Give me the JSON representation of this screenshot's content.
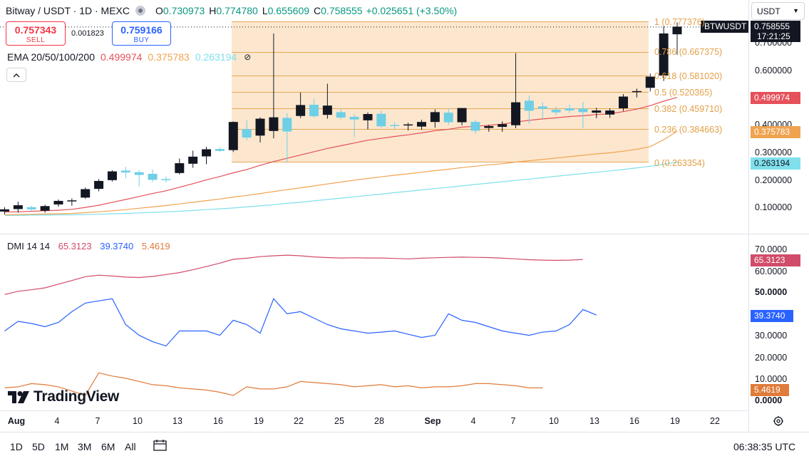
{
  "header": {
    "title": "Bitway / USDT · 1D · MEXC",
    "o_label": "O",
    "o_value": "0.730973",
    "h_label": "H",
    "h_value": "0.774780",
    "l_label": "L",
    "l_value": "0.655609",
    "c_label": "C",
    "c_value": "0.758555",
    "change": "+0.025651 (+3.50%)",
    "up_color": "#089981"
  },
  "trade": {
    "sell_price": "0.757343",
    "sell_label": "SELL",
    "spread": "0.001823",
    "buy_price": "0.759166",
    "buy_label": "BUY"
  },
  "ema": {
    "name": "EMA 20/50/100/200",
    "v20": "0.499974",
    "v50": "0.375783",
    "v100": "0.263194",
    "hide_icon": "⊘",
    "colors": {
      "ema20": "#e5505a",
      "ema50": "#f0a350",
      "ema100": "#7fe0ec"
    }
  },
  "collapse_icon": "chevron-up",
  "dmi": {
    "name": "DMI 14 14",
    "adx": "65.3123",
    "plus_di": "39.3740",
    "minus_di": "5.4619",
    "colors": {
      "adx": "#d14b6a",
      "plus_di": "#2962ff",
      "minus_di": "#e07b39"
    }
  },
  "logo_text": "TradingView",
  "currency": {
    "selected": "USDT"
  },
  "price_axis": {
    "ticker": "BTWUSDT",
    "last_price": "0.758555",
    "countdown": "17:21:25",
    "ticks": [
      "0.700000",
      "0.600000",
      "0.400000",
      "0.300000",
      "0.200000",
      "0.100000"
    ],
    "ema20_tag": "0.499974",
    "ema50_tag": "0.375783",
    "ema100_tag": "0.263194"
  },
  "dmi_axis": {
    "ticks": [
      "70.0000",
      "60.0000",
      "50.0000",
      "30.0000",
      "20.0000",
      "10.0000",
      "0.0000"
    ],
    "adx_tag": "65.3123",
    "plus_tag": "39.3740",
    "minus_tag": "5.4619"
  },
  "fib": {
    "levels": [
      {
        "label": "1 (0.777376)",
        "value": 0.777376
      },
      {
        "label": "0.786 (0.667375)",
        "value": 0.667375
      },
      {
        "label": "0.618 (0.581020)",
        "value": 0.58102
      },
      {
        "label": "0.5 (0.520365)",
        "value": 0.520365
      },
      {
        "label": "0.382 (0.459710)",
        "value": 0.45971
      },
      {
        "label": "0.236 (0.384663)",
        "value": 0.384663
      },
      {
        "label": "0 (0.263354)",
        "value": 0.263354
      }
    ],
    "fill_color": "#fbe3c6",
    "line_color": "#e3a048"
  },
  "x_axis": {
    "labels": [
      "Aug",
      "4",
      "7",
      "10",
      "13",
      "16",
      "19",
      "22",
      "25",
      "28",
      "Sep",
      "4",
      "7",
      "10",
      "13",
      "16",
      "19",
      "22"
    ]
  },
  "bottom": {
    "timeframes": [
      "1D",
      "5D",
      "1M",
      "3M",
      "6M",
      "All"
    ],
    "utc_time": "06:38:35 UTC"
  },
  "chart_data": {
    "type": "candlestick",
    "symbol": "BTWUSDT",
    "interval": "1D",
    "x_start": "Jul 31",
    "candles": [
      {
        "o": 0.082,
        "h": 0.098,
        "l": 0.072,
        "c": 0.09
      },
      {
        "o": 0.091,
        "h": 0.118,
        "l": 0.078,
        "c": 0.105
      },
      {
        "o": 0.098,
        "h": 0.103,
        "l": 0.083,
        "c": 0.09
      },
      {
        "o": 0.085,
        "h": 0.107,
        "l": 0.078,
        "c": 0.102
      },
      {
        "o": 0.108,
        "h": 0.126,
        "l": 0.1,
        "c": 0.121
      },
      {
        "o": 0.121,
        "h": 0.13,
        "l": 0.103,
        "c": 0.123
      },
      {
        "o": 0.133,
        "h": 0.17,
        "l": 0.129,
        "c": 0.164
      },
      {
        "o": 0.165,
        "h": 0.201,
        "l": 0.156,
        "c": 0.194
      },
      {
        "o": 0.197,
        "h": 0.233,
        "l": 0.192,
        "c": 0.229
      },
      {
        "o": 0.232,
        "h": 0.246,
        "l": 0.203,
        "c": 0.225
      },
      {
        "o": 0.226,
        "h": 0.233,
        "l": 0.174,
        "c": 0.216
      },
      {
        "o": 0.22,
        "h": 0.236,
        "l": 0.19,
        "c": 0.198
      },
      {
        "o": 0.201,
        "h": 0.21,
        "l": 0.188,
        "c": 0.197
      },
      {
        "o": 0.223,
        "h": 0.276,
        "l": 0.218,
        "c": 0.259
      },
      {
        "o": 0.257,
        "h": 0.305,
        "l": 0.242,
        "c": 0.283
      },
      {
        "o": 0.284,
        "h": 0.319,
        "l": 0.255,
        "c": 0.31
      },
      {
        "o": 0.311,
        "h": 0.316,
        "l": 0.3,
        "c": 0.304
      },
      {
        "o": 0.307,
        "h": 0.412,
        "l": 0.3,
        "c": 0.41
      },
      {
        "o": 0.384,
        "h": 0.416,
        "l": 0.343,
        "c": 0.353
      },
      {
        "o": 0.36,
        "h": 0.427,
        "l": 0.335,
        "c": 0.422
      },
      {
        "o": 0.377,
        "h": 0.734,
        "l": 0.35,
        "c": 0.427
      },
      {
        "o": 0.425,
        "h": 0.442,
        "l": 0.263,
        "c": 0.375
      },
      {
        "o": 0.432,
        "h": 0.518,
        "l": 0.424,
        "c": 0.472
      },
      {
        "o": 0.473,
        "h": 0.495,
        "l": 0.425,
        "c": 0.431
      },
      {
        "o": 0.436,
        "h": 0.55,
        "l": 0.422,
        "c": 0.47
      },
      {
        "o": 0.446,
        "h": 0.459,
        "l": 0.42,
        "c": 0.426
      },
      {
        "o": 0.429,
        "h": 0.439,
        "l": 0.355,
        "c": 0.419
      },
      {
        "o": 0.416,
        "h": 0.445,
        "l": 0.383,
        "c": 0.439
      },
      {
        "o": 0.44,
        "h": 0.451,
        "l": 0.389,
        "c": 0.394
      },
      {
        "o": 0.399,
        "h": 0.409,
        "l": 0.382,
        "c": 0.398
      },
      {
        "o": 0.399,
        "h": 0.407,
        "l": 0.379,
        "c": 0.401
      },
      {
        "o": 0.393,
        "h": 0.418,
        "l": 0.381,
        "c": 0.41
      },
      {
        "o": 0.41,
        "h": 0.456,
        "l": 0.389,
        "c": 0.446
      },
      {
        "o": 0.444,
        "h": 0.46,
        "l": 0.399,
        "c": 0.409
      },
      {
        "o": 0.409,
        "h": 0.46,
        "l": 0.398,
        "c": 0.461
      },
      {
        "o": 0.41,
        "h": 0.417,
        "l": 0.367,
        "c": 0.378
      },
      {
        "o": 0.388,
        "h": 0.4,
        "l": 0.374,
        "c": 0.395
      },
      {
        "o": 0.392,
        "h": 0.412,
        "l": 0.374,
        "c": 0.402
      },
      {
        "o": 0.398,
        "h": 0.662,
        "l": 0.387,
        "c": 0.482
      },
      {
        "o": 0.488,
        "h": 0.507,
        "l": 0.403,
        "c": 0.451
      },
      {
        "o": 0.467,
        "h": 0.483,
        "l": 0.422,
        "c": 0.458
      },
      {
        "o": 0.455,
        "h": 0.467,
        "l": 0.434,
        "c": 0.445
      },
      {
        "o": 0.46,
        "h": 0.474,
        "l": 0.443,
        "c": 0.452
      },
      {
        "o": 0.459,
        "h": 0.483,
        "l": 0.388,
        "c": 0.446
      },
      {
        "o": 0.444,
        "h": 0.462,
        "l": 0.424,
        "c": 0.452
      },
      {
        "o": 0.437,
        "h": 0.46,
        "l": 0.425,
        "c": 0.452
      },
      {
        "o": 0.46,
        "h": 0.512,
        "l": 0.45,
        "c": 0.503
      },
      {
        "o": 0.52,
        "h": 0.532,
        "l": 0.5,
        "c": 0.523
      },
      {
        "o": 0.535,
        "h": 0.587,
        "l": 0.522,
        "c": 0.576
      },
      {
        "o": 0.58,
        "h": 0.76,
        "l": 0.56,
        "c": 0.734
      },
      {
        "o": 0.731,
        "h": 0.775,
        "l": 0.656,
        "c": 0.759
      }
    ],
    "ema20": [
      0.08,
      0.081,
      0.083,
      0.085,
      0.087,
      0.09,
      0.097,
      0.105,
      0.116,
      0.126,
      0.137,
      0.148,
      0.158,
      0.171,
      0.184,
      0.198,
      0.21,
      0.224,
      0.236,
      0.251,
      0.265,
      0.277,
      0.289,
      0.301,
      0.313,
      0.323,
      0.333,
      0.343,
      0.35,
      0.357,
      0.363,
      0.37,
      0.378,
      0.383,
      0.391,
      0.394,
      0.398,
      0.402,
      0.41,
      0.416,
      0.421,
      0.425,
      0.43,
      0.433,
      0.437,
      0.44,
      0.448,
      0.457,
      0.47,
      0.486,
      0.5
    ],
    "ema50": [
      0.07,
      0.071,
      0.072,
      0.073,
      0.074,
      0.075,
      0.078,
      0.081,
      0.085,
      0.089,
      0.094,
      0.099,
      0.104,
      0.11,
      0.116,
      0.122,
      0.128,
      0.135,
      0.141,
      0.148,
      0.155,
      0.162,
      0.169,
      0.176,
      0.183,
      0.19,
      0.197,
      0.203,
      0.209,
      0.215,
      0.22,
      0.226,
      0.232,
      0.237,
      0.243,
      0.248,
      0.253,
      0.257,
      0.263,
      0.268,
      0.273,
      0.278,
      0.283,
      0.288,
      0.293,
      0.297,
      0.303,
      0.31,
      0.32,
      0.345,
      0.376
    ],
    "ema100": [
      0.068,
      0.068,
      0.069,
      0.069,
      0.07,
      0.07,
      0.071,
      0.072,
      0.074,
      0.075,
      0.077,
      0.079,
      0.081,
      0.083,
      0.086,
      0.089,
      0.092,
      0.095,
      0.099,
      0.103,
      0.107,
      0.112,
      0.116,
      0.121,
      0.126,
      0.131,
      0.136,
      0.141,
      0.146,
      0.151,
      0.156,
      0.161,
      0.166,
      0.171,
      0.176,
      0.181,
      0.186,
      0.191,
      0.196,
      0.201,
      0.206,
      0.211,
      0.216,
      0.221,
      0.226,
      0.231,
      0.236,
      0.242,
      0.248,
      0.255,
      0.263
    ],
    "dmi_adx": [
      49.0,
      50.5,
      51.2,
      52.1,
      53.8,
      55.5,
      57.3,
      58.0,
      57.6,
      57.1,
      56.9,
      57.4,
      58.3,
      59.2,
      60.5,
      62.0,
      63.6,
      65.4,
      65.9,
      66.6,
      67.0,
      67.3,
      67.0,
      66.5,
      66.2,
      66.0,
      66.1,
      66.0,
      66.0,
      65.8,
      65.6,
      65.9,
      66.1,
      66.3,
      66.4,
      66.3,
      66.2,
      65.9,
      65.6,
      65.2,
      65.0,
      64.9,
      65.0,
      65.3
    ],
    "dmi_plus": [
      32.0,
      36.5,
      35.5,
      34.0,
      36.0,
      41.0,
      45.0,
      46.0,
      47.0,
      35.0,
      30.0,
      27.0,
      25.0,
      32.0,
      32.0,
      32.0,
      30.0,
      37.0,
      35.0,
      31.0,
      47.0,
      40.0,
      41.0,
      38.0,
      35.0,
      33.0,
      32.0,
      31.0,
      31.5,
      32.0,
      30.5,
      29.0,
      30.0,
      40.0,
      37.0,
      36.0,
      34.0,
      32.0,
      31.0,
      30.0,
      31.5,
      32.0,
      35.0,
      42.0,
      39.4
    ],
    "dmi_minus": [
      5.5,
      6.0,
      7.5,
      7.0,
      6.0,
      4.0,
      2.0,
      12.5,
      11.0,
      10.0,
      8.5,
      7.0,
      6.5,
      5.5,
      5.0,
      4.5,
      3.5,
      2.0,
      6.0,
      5.0,
      5.0,
      6.0,
      8.5,
      8.0,
      7.5,
      7.0,
      6.0,
      6.5,
      7.0,
      6.0,
      6.5,
      5.5,
      6.0,
      6.0,
      6.5,
      7.5,
      7.5,
      7.0,
      6.5,
      5.5,
      5.5
    ],
    "ylim": [
      0,
      0.8
    ],
    "dmi_ylim": [
      0,
      70
    ],
    "grid": true
  }
}
